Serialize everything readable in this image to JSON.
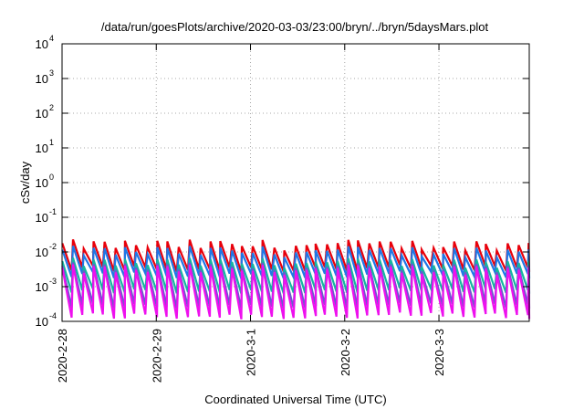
{
  "chart_data": {
    "type": "line",
    "title": "/data/run/goesPlots/archive/2020-03-03/23:00/bryn/../bryn/5daysMars.plot",
    "xlabel": "Coordinated Universal Time (UTC)",
    "ylabel": "cSv/day",
    "y_scale": "log",
    "ylim": [
      0.0001,
      10000
    ],
    "y_ticks": [
      {
        "base": "10",
        "exp": "-4"
      },
      {
        "base": "10",
        "exp": "-3"
      },
      {
        "base": "10",
        "exp": "-2"
      },
      {
        "base": "10",
        "exp": "-1"
      },
      {
        "base": "10",
        "exp": "0"
      },
      {
        "base": "10",
        "exp": "1"
      },
      {
        "base": "10",
        "exp": "2"
      },
      {
        "base": "10",
        "exp": "3"
      },
      {
        "base": "10",
        "exp": "4"
      }
    ],
    "x_range": [
      "2020-02-28",
      "2020-03-03 23:00"
    ],
    "x_ticks": [
      "2020-2-28",
      "2020-2-29",
      "2020-3-1",
      "2020-3-2",
      "2020-3-3"
    ],
    "grid": true,
    "cycle_hours": 2.7,
    "series": [
      {
        "color": "#e8000b",
        "peak_range": [
          0.011,
          0.023
        ],
        "trough_range": [
          0.0025,
          0.0042
        ]
      },
      {
        "color": "#1f77e6",
        "peak_range": [
          0.007,
          0.015
        ],
        "trough_range": [
          0.0016,
          0.0028
        ]
      },
      {
        "color": "#15b5a0",
        "peak_range": [
          0.0035,
          0.0068
        ],
        "trough_range": [
          0.0006,
          0.0009
        ]
      },
      {
        "color": "#6a5acd",
        "peak_range": [
          0.0026,
          0.005
        ],
        "trough_range": [
          0.00022,
          0.00034
        ]
      },
      {
        "color": "#ee10ee",
        "peak_range": [
          0.0022,
          0.0044
        ],
        "trough_range": [
          0.00011,
          0.00018
        ]
      }
    ]
  }
}
